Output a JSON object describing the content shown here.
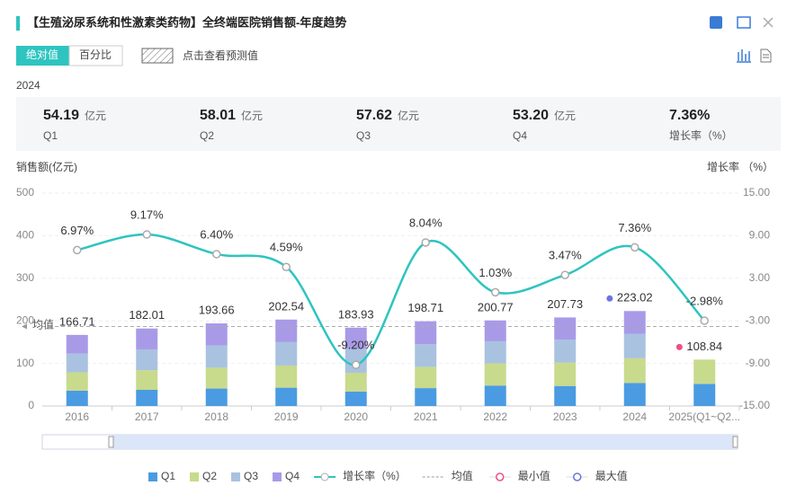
{
  "header": {
    "title": "【生殖泌尿系统和性激素类药物】全终端医院销售额-年度趋势",
    "buttons": [
      "绝对值",
      "百分比"
    ],
    "forecast": "点击查看预测值"
  },
  "year": "2024",
  "kpis": [
    {
      "value": "54.19",
      "unit": "亿元",
      "label": "Q1"
    },
    {
      "value": "58.01",
      "unit": "亿元",
      "label": "Q2"
    },
    {
      "value": "57.62",
      "unit": "亿元",
      "label": "Q3"
    },
    {
      "value": "53.20",
      "unit": "亿元",
      "label": "Q4"
    },
    {
      "value": "7.36%",
      "label": "增长率（%）"
    }
  ],
  "chart_data": {
    "type": "bar",
    "stacked": true,
    "y_label": "销售额(亿元)",
    "y2_label": "增长率 （%）",
    "categories": [
      "2016",
      "2017",
      "2018",
      "2019",
      "2020",
      "2021",
      "2022",
      "2023",
      "2024",
      "2025(Q1~Q2..."
    ],
    "series": [
      {
        "name": "Q1",
        "color": "#4a9be2",
        "values": [
          36,
          38,
          41,
          43,
          34,
          42,
          48,
          47,
          54.19,
          52
        ]
      },
      {
        "name": "Q2",
        "color": "#c8da8c",
        "values": [
          43,
          46,
          49,
          52,
          44,
          50,
          52,
          55,
          58.01,
          57
        ]
      },
      {
        "name": "Q3",
        "color": "#a9c2e0",
        "values": [
          44,
          49,
          52,
          55,
          57,
          53,
          52,
          54,
          57.62,
          null
        ]
      },
      {
        "name": "Q4",
        "color": "#a99ae8",
        "values": [
          44,
          49,
          52,
          53,
          49,
          54,
          49,
          52,
          53.2,
          null
        ]
      },
      {
        "name": "增长率（%）",
        "type": "line",
        "axis": "y2",
        "color": "#2ec4c0",
        "values": [
          6.97,
          9.17,
          6.4,
          4.59,
          -9.2,
          8.04,
          1.03,
          3.47,
          7.36,
          -2.98
        ],
        "value_labels": [
          "6.97%",
          "9.17%",
          "6.40%",
          "4.59%",
          "-9.20%",
          "8.04%",
          "1.03%",
          "3.47%",
          "7.36%",
          "-2.98%"
        ]
      }
    ],
    "totals": [
      166.71,
      182.01,
      193.66,
      202.54,
      183.93,
      198.71,
      200.77,
      207.73,
      223.02,
      108.84
    ],
    "mean": {
      "name": "均值",
      "color": "#aaaaaa"
    },
    "min": {
      "name": "最小值",
      "color": "#ee4f8a"
    },
    "max": {
      "name": "最大值",
      "color": "#6c74e0"
    },
    "ylim": [
      0,
      500
    ],
    "yticks": [
      0,
      100,
      200,
      300,
      400,
      500
    ],
    "y2lim": [
      -15,
      15
    ],
    "y2ticks": [
      {
        "value": -15,
        "label": "-15.00"
      },
      {
        "value": -9,
        "label": "-9.00"
      },
      {
        "value": -3,
        "label": "-3.00"
      },
      {
        "value": 3,
        "label": "3.00"
      },
      {
        "value": 9,
        "label": "9.00"
      },
      {
        "value": 15,
        "label": "15.00"
      }
    ],
    "grid": true,
    "legend": "bottom"
  }
}
